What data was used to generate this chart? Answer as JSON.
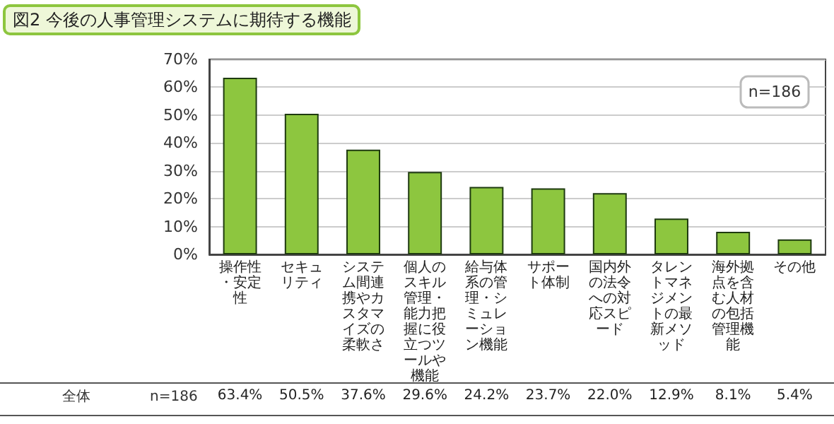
{
  "chart_data": {
    "type": "bar",
    "title": "図2 今後の人事管理システムに期待する機能",
    "categories": [
      "操作性・安定性",
      "セキュリティ",
      "システム間連携やカスタマイズの柔軟さ",
      "個人のスキル管理・能力把握に役立つツールや機能",
      "給与体系の管理・シミュレーション機能",
      "サポート体制",
      "国内外の法令への対応スピード",
      "タレントマネジメントの最新メソッド",
      "海外拠点を含む人材の包括管理機能",
      "その他"
    ],
    "values": [
      63.4,
      50.5,
      37.6,
      29.6,
      24.2,
      23.7,
      22.0,
      12.9,
      8.1,
      5.4
    ],
    "value_labels": [
      "63.4%",
      "50.5%",
      "37.6%",
      "29.6%",
      "24.2%",
      "23.7%",
      "22.0%",
      "12.9%",
      "8.1%",
      "5.4%"
    ],
    "color": "#8dc63f",
    "ylim": [
      0,
      70
    ],
    "yticks": [
      {
        "value": 0,
        "label": "0%"
      },
      {
        "value": 10,
        "label": "10%"
      },
      {
        "value": 20,
        "label": "20%"
      },
      {
        "value": 30,
        "label": "30%"
      },
      {
        "value": 40,
        "label": "40%"
      },
      {
        "value": 50,
        "label": "50%"
      },
      {
        "value": 60,
        "label": "60%"
      },
      {
        "value": 70,
        "label": "70%"
      }
    ],
    "grid": "y",
    "annotations": [
      "n=186",
      "全体",
      "n=186"
    ]
  }
}
